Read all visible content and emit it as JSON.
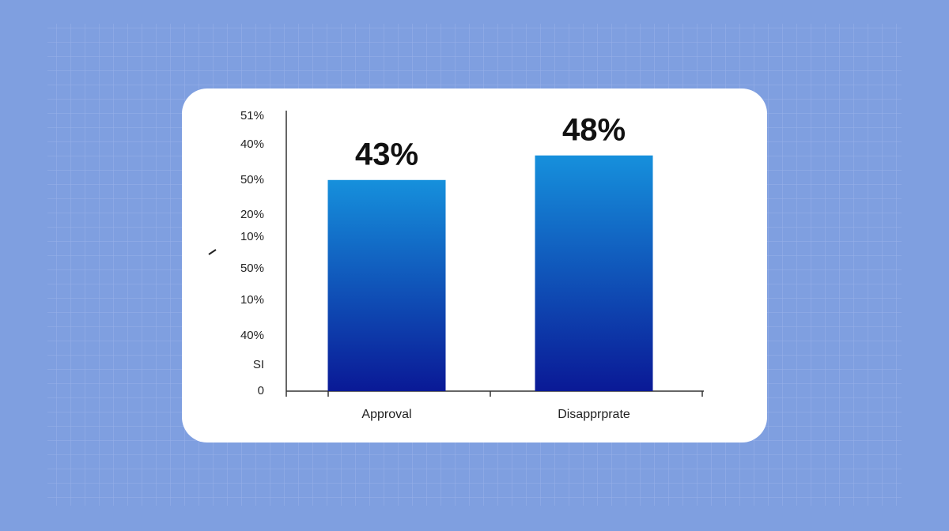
{
  "chart_data": {
    "type": "bar",
    "categories": [
      "Approval",
      "Disapprprate"
    ],
    "values": [
      43,
      48
    ],
    "value_labels": [
      "43%",
      "48%"
    ],
    "ylim": [
      0,
      56
    ],
    "y_axis_labels": [
      "51%",
      "40%",
      "50%",
      "20%",
      "10%",
      "50%",
      "10%",
      "40%",
      "SI",
      "0"
    ],
    "colors": [
      "#1690dc",
      "#0a1996"
    ]
  }
}
